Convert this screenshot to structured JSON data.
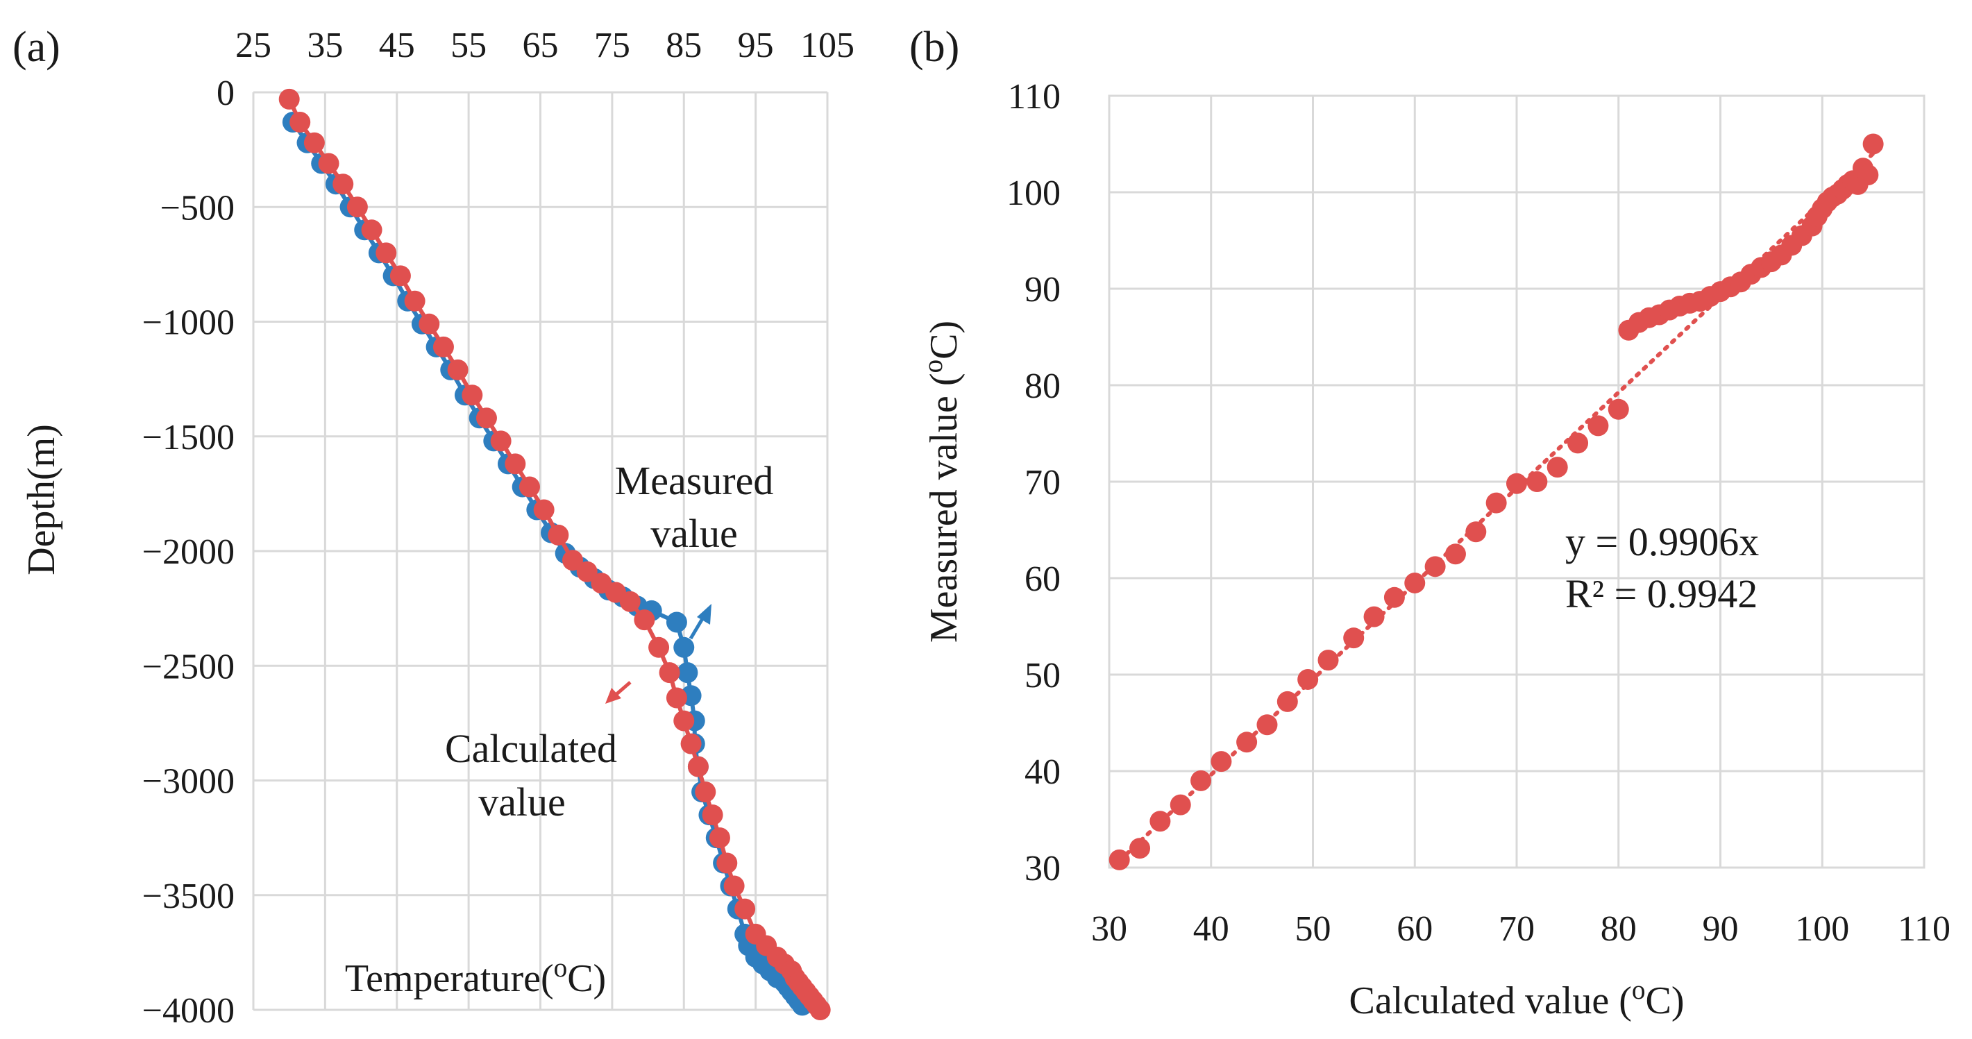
{
  "colors": {
    "measured": "#2e7ebf",
    "calculated": "#e0504f",
    "grid": "#d9d9d9",
    "text": "#1a1a1a"
  },
  "chart_data": [
    {
      "panel_label": "(a)",
      "type": "line",
      "xlabel": "Temperature(oC)",
      "ylabel": "Depth(m)",
      "xlim": [
        25,
        105
      ],
      "ylim": [
        -4000,
        0
      ],
      "x_ticks": [
        "25",
        "35",
        "45",
        "55",
        "65",
        "75",
        "85",
        "95",
        "105"
      ],
      "y_ticks": [
        "0",
        "−500",
        "−1000",
        "−1500",
        "−2000",
        "−2500",
        "−3000",
        "−3500",
        "−4000"
      ],
      "grid": true,
      "annotations": [
        {
          "text_lines": [
            "Measured",
            "value"
          ],
          "series": "Measured value"
        },
        {
          "text_lines": [
            "Calculated",
            "value"
          ],
          "series": "Calculated value"
        }
      ],
      "series": [
        {
          "name": "Measured value",
          "x": [
            30.5,
            32.5,
            34.5,
            36.5,
            38.5,
            40.5,
            42.5,
            44.5,
            46.5,
            48.5,
            50.5,
            52.5,
            54.5,
            56.5,
            58.5,
            60.5,
            62.5,
            64.5,
            66.5,
            68.5,
            70.5,
            72.5,
            74.5,
            76.5,
            78.5,
            80.5,
            84.0,
            85.0,
            85.5,
            86.0,
            86.5,
            86.5,
            87.0,
            87.5,
            88.5,
            89.5,
            90.5,
            91.5,
            92.5,
            93.5,
            94.0,
            95.0,
            96.0,
            97.0,
            98.0,
            99.0,
            99.5,
            100.0,
            100.5,
            101.0,
            101.5
          ],
          "y": [
            -130,
            -220,
            -310,
            -400,
            -500,
            -600,
            -700,
            -800,
            -910,
            -1010,
            -1110,
            -1210,
            -1320,
            -1420,
            -1520,
            -1620,
            -1720,
            -1820,
            -1920,
            -2010,
            -2070,
            -2120,
            -2170,
            -2200,
            -2240,
            -2260,
            -2310,
            -2420,
            -2530,
            -2630,
            -2740,
            -2840,
            -2940,
            -3050,
            -3150,
            -3250,
            -3360,
            -3460,
            -3560,
            -3670,
            -3720,
            -3770,
            -3800,
            -3830,
            -3860,
            -3880,
            -3900,
            -3920,
            -3940,
            -3960,
            -3980
          ]
        },
        {
          "name": "Calculated value",
          "x": [
            30.0,
            31.5,
            33.5,
            35.5,
            37.5,
            39.5,
            41.5,
            43.5,
            45.5,
            47.5,
            49.5,
            51.5,
            53.5,
            55.5,
            57.5,
            59.5,
            61.5,
            63.5,
            65.5,
            67.5,
            69.5,
            71.5,
            73.5,
            75.5,
            77.5,
            79.5,
            81.5,
            83.0,
            84.0,
            85.0,
            86.0,
            87.0,
            88.0,
            89.0,
            90.0,
            91.0,
            92.0,
            93.5,
            95.0,
            96.5,
            98.0,
            99.0,
            100.0,
            100.5,
            101.0,
            101.5,
            102.0,
            102.5,
            103.0,
            103.5,
            104.0
          ],
          "y": [
            -30,
            -130,
            -220,
            -310,
            -400,
            -500,
            -600,
            -700,
            -800,
            -910,
            -1010,
            -1110,
            -1210,
            -1320,
            -1420,
            -1520,
            -1620,
            -1720,
            -1820,
            -1930,
            -2040,
            -2090,
            -2140,
            -2180,
            -2220,
            -2300,
            -2420,
            -2530,
            -2640,
            -2740,
            -2840,
            -2940,
            -3050,
            -3150,
            -3250,
            -3360,
            -3460,
            -3560,
            -3670,
            -3720,
            -3770,
            -3800,
            -3830,
            -3860,
            -3880,
            -3900,
            -3920,
            -3940,
            -3960,
            -3980,
            -4000
          ]
        }
      ]
    },
    {
      "panel_label": "(b)",
      "type": "scatter",
      "xlabel": "Calculated value (oC)",
      "ylabel": "Measured value (oC)",
      "xlim": [
        30,
        110
      ],
      "ylim": [
        30,
        110
      ],
      "x_ticks": [
        "30",
        "40",
        "50",
        "60",
        "70",
        "80",
        "90",
        "100",
        "110"
      ],
      "y_ticks": [
        "30",
        "40",
        "50",
        "60",
        "70",
        "80",
        "90",
        "100",
        "110"
      ],
      "grid": true,
      "trendline": {
        "style": "dotted",
        "slope": 0.9906,
        "intercept": 0
      },
      "annotation_lines": [
        "y = 0.9906x",
        "R² = 0.9942"
      ],
      "series": [
        {
          "name": "",
          "x": [
            31.0,
            33.0,
            35.0,
            37.0,
            39.0,
            41.0,
            43.5,
            45.5,
            47.5,
            49.5,
            51.5,
            54.0,
            56.0,
            58.0,
            60.0,
            62.0,
            64.0,
            66.0,
            68.0,
            70.0,
            72.0,
            74.0,
            76.0,
            78.0,
            80.0,
            81.0,
            82.0,
            83.0,
            84.0,
            85.0,
            86.0,
            87.0,
            88.0,
            89.0,
            90.0,
            91.0,
            92.0,
            93.0,
            94.0,
            95.0,
            96.0,
            97.0,
            98.0,
            99.0,
            99.5,
            100.0,
            100.5,
            101.0,
            101.5,
            102.0,
            102.5,
            103.0,
            103.5,
            104.0,
            104.5,
            105.0
          ],
          "y": [
            30.8,
            32.0,
            34.8,
            36.5,
            39.0,
            41.0,
            43.0,
            44.8,
            47.2,
            49.5,
            51.5,
            53.8,
            56.0,
            58.0,
            59.5,
            61.2,
            62.5,
            64.8,
            67.8,
            69.8,
            70.0,
            71.5,
            74.0,
            75.8,
            77.5,
            85.7,
            86.5,
            87.0,
            87.3,
            87.8,
            88.2,
            88.5,
            88.7,
            89.2,
            89.7,
            90.2,
            90.7,
            91.5,
            92.2,
            92.8,
            93.5,
            94.5,
            95.5,
            96.5,
            97.5,
            98.3,
            99.0,
            99.5,
            99.8,
            100.3,
            100.8,
            101.2,
            100.8,
            102.5,
            101.8,
            105.0
          ]
        }
      ]
    }
  ]
}
